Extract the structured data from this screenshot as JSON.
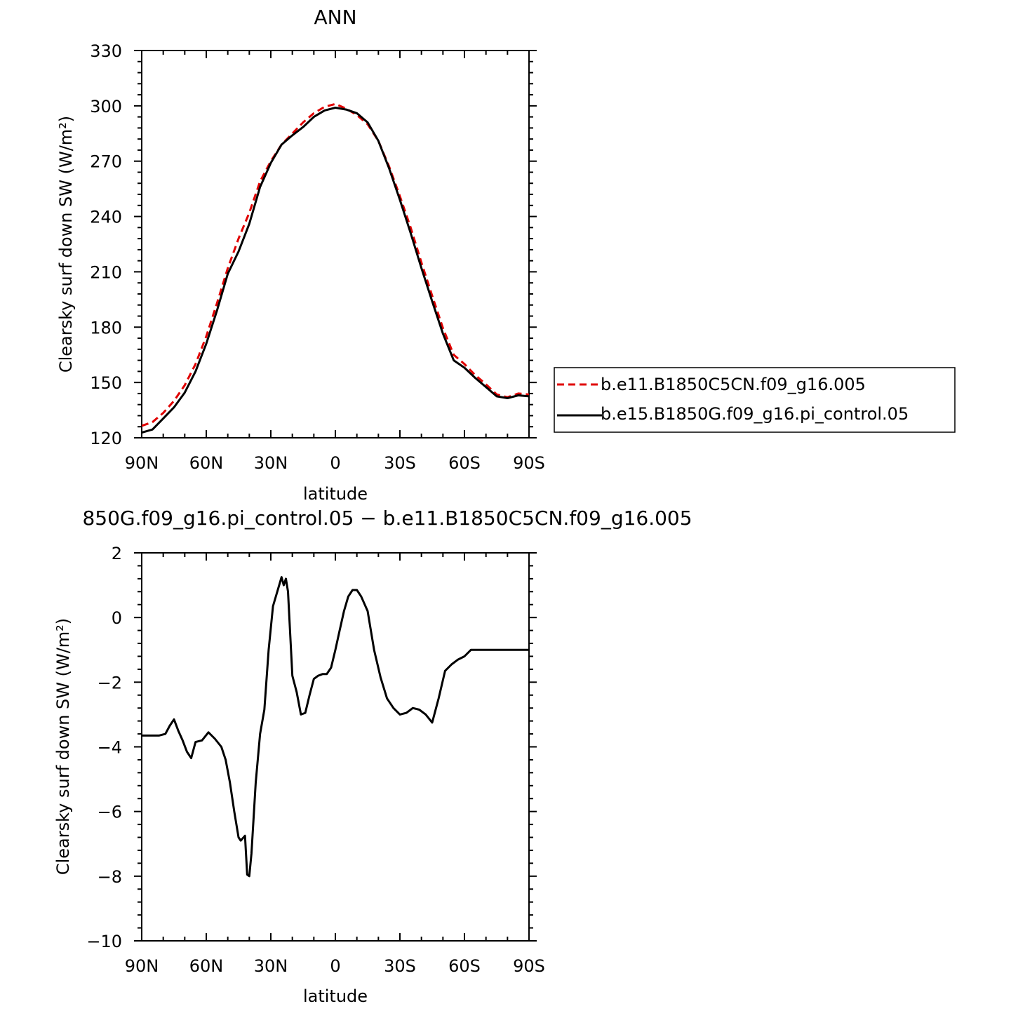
{
  "chart_data": [
    {
      "type": "line",
      "title": "ANN",
      "xlabel": "latitude",
      "ylabel": "Clearsky surf down SW (W/m²)",
      "xlim": [
        90,
        -90
      ],
      "ylim": [
        120,
        330
      ],
      "x_ticks": [
        90,
        60,
        30,
        0,
        -30,
        -60,
        -90
      ],
      "x_tick_labels": [
        "90N",
        "60N",
        "30N",
        "0",
        "30S",
        "60S",
        "90S"
      ],
      "y_ticks": [
        120,
        150,
        180,
        210,
        240,
        270,
        300,
        330
      ],
      "y_tick_labels": [
        "120",
        "150",
        "180",
        "210",
        "240",
        "270",
        "300",
        "330"
      ],
      "legend_position": "right",
      "series": [
        {
          "name": "b.e11.B1850C5CN.f09_g16.005",
          "color": "#e00000",
          "dash": "dashed",
          "x": [
            90,
            85,
            80,
            75,
            70,
            65,
            60,
            55,
            50,
            45,
            40,
            35,
            30,
            25,
            20,
            15,
            10,
            5,
            0,
            -5,
            -10,
            -15,
            -20,
            -25,
            -30,
            -35,
            -40,
            -45,
            -50,
            -55,
            -60,
            -65,
            -70,
            -75,
            -80,
            -85,
            -90
          ],
          "y": [
            126.5,
            128.5,
            133.5,
            140,
            148.5,
            160,
            175,
            193,
            212,
            228,
            242,
            259,
            270,
            279,
            285,
            291,
            296,
            299.5,
            301,
            298.5,
            295,
            290,
            281,
            267,
            251,
            234,
            215,
            197,
            179.5,
            165,
            160,
            154,
            149,
            143.5,
            142,
            144,
            143.5
          ]
        },
        {
          "name": "b.e15.B1850G.f09_g16.pi_control.05",
          "color": "#000000",
          "dash": "solid",
          "x": [
            90,
            85,
            80,
            75,
            70,
            65,
            60,
            55,
            50,
            45,
            40,
            35,
            30,
            25,
            20,
            15,
            10,
            5,
            0,
            -5,
            -10,
            -15,
            -20,
            -25,
            -30,
            -35,
            -40,
            -45,
            -50,
            -55,
            -60,
            -65,
            -70,
            -75,
            -80,
            -85,
            -90
          ],
          "y": [
            122.8,
            124.5,
            130.5,
            136.5,
            144.5,
            156,
            171,
            189,
            209,
            221,
            236,
            256,
            269,
            279,
            284,
            288.5,
            294,
            297.5,
            299,
            298,
            296,
            291,
            281,
            266,
            249,
            231,
            212,
            194,
            176.5,
            162,
            158,
            152.5,
            147.5,
            142.5,
            141.5,
            143,
            142.5
          ]
        }
      ]
    },
    {
      "type": "line",
      "title": "850G.f09_g16.pi_control.05 − b.e11.B1850C5CN.f09_g16.005",
      "xlabel": "latitude",
      "ylabel": "Clearsky surf down SW (W/m²)",
      "xlim": [
        90,
        -90
      ],
      "ylim": [
        -10,
        2
      ],
      "x_ticks": [
        90,
        60,
        30,
        0,
        -30,
        -60,
        -90
      ],
      "x_tick_labels": [
        "90N",
        "60N",
        "30N",
        "0",
        "30S",
        "60S",
        "90S"
      ],
      "y_ticks": [
        -10,
        -8,
        -6,
        -4,
        -2,
        0,
        2
      ],
      "y_tick_labels": [
        "−10",
        "−8",
        "−6",
        "−4",
        "−2",
        "0",
        "2"
      ],
      "series": [
        {
          "color": "#000000",
          "dash": "solid",
          "x": [
            90,
            85,
            82,
            79,
            77,
            75,
            73,
            71,
            69,
            67,
            65,
            62,
            59,
            56,
            53,
            51,
            49,
            47,
            45,
            44,
            42,
            41,
            40,
            39,
            37,
            35,
            33,
            31,
            29,
            27,
            25,
            24,
            23,
            22,
            21,
            20,
            18,
            16,
            14,
            12,
            10,
            8,
            6,
            4,
            2,
            0,
            -2,
            -4,
            -6,
            -8,
            -10,
            -12,
            -15,
            -18,
            -21,
            -24,
            -27,
            -30,
            -33,
            -36,
            -39,
            -42,
            -45,
            -48,
            -51,
            -54,
            -57,
            -60,
            -63,
            -66,
            -70,
            -75,
            -80,
            -85,
            -90
          ],
          "y": [
            -3.65,
            -3.65,
            -3.65,
            -3.6,
            -3.35,
            -3.15,
            -3.5,
            -3.8,
            -4.15,
            -4.35,
            -3.85,
            -3.8,
            -3.55,
            -3.75,
            -4.0,
            -4.4,
            -5.1,
            -6.0,
            -6.8,
            -6.9,
            -6.75,
            -7.95,
            -8.0,
            -7.3,
            -5.1,
            -3.6,
            -2.85,
            -1.0,
            0.35,
            0.8,
            1.25,
            1.0,
            1.2,
            0.8,
            -0.5,
            -1.8,
            -2.3,
            -3.0,
            -2.95,
            -2.4,
            -1.9,
            -1.8,
            -1.75,
            -1.75,
            -1.55,
            -1.0,
            -0.4,
            0.2,
            0.65,
            0.85,
            0.85,
            0.65,
            0.2,
            -1.0,
            -1.85,
            -2.5,
            -2.8,
            -3.0,
            -2.95,
            -2.8,
            -2.85,
            -3.0,
            -3.25,
            -2.5,
            -1.65,
            -1.45,
            -1.3,
            -1.2,
            -1.0,
            -1.0,
            -1.0,
            -1.0,
            -1.0,
            -1.0,
            -1.0
          ]
        }
      ]
    }
  ]
}
